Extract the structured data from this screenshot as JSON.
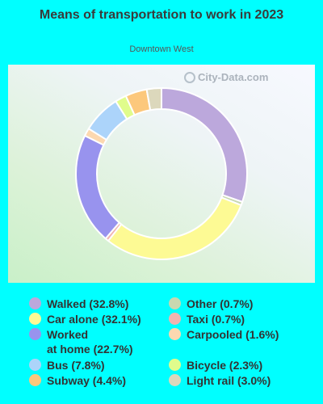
{
  "header": {
    "title": "Means of transportation to work in 2023",
    "subtitle": "Downtown West",
    "watermark": "City-Data.com"
  },
  "chart_data": {
    "type": "pie",
    "title": "Means of transportation to work in 2023",
    "subtitle": "Downtown West",
    "donut": true,
    "series": [
      {
        "name": "Walked",
        "value": 32.8,
        "color": "#bca8dc",
        "legend": "Walked (32.8%)"
      },
      {
        "name": "Other",
        "value": 0.7,
        "color": "#c8d8b0",
        "legend": "Other (0.7%)"
      },
      {
        "name": "Car alone",
        "value": 32.1,
        "color": "#fdfa94",
        "legend": "Car alone (32.1%)"
      },
      {
        "name": "Taxi",
        "value": 0.7,
        "color": "#f0b4b0",
        "legend": "Taxi (0.7%)"
      },
      {
        "name": "Worked at home",
        "value": 22.7,
        "color": "#9893ee",
        "legend": "Worked at home (22.7%)"
      },
      {
        "name": "Carpooled",
        "value": 1.6,
        "color": "#fcd8b0",
        "legend": "Carpooled (1.6%)"
      },
      {
        "name": "Bus",
        "value": 7.8,
        "color": "#acd4fa",
        "legend": "Bus (7.8%)"
      },
      {
        "name": "Bicycle",
        "value": 2.3,
        "color": "#e0fc8c",
        "legend": "Bicycle (2.3%)"
      },
      {
        "name": "Subway",
        "value": 4.4,
        "color": "#fcc87c",
        "legend": "Subway (4.4%)"
      },
      {
        "name": "Light rail",
        "value": 3.0,
        "color": "#dcd8bc",
        "legend": "Light rail (3.0%)"
      }
    ],
    "legend_layout": "two-columns-bottom"
  },
  "legend": {
    "col1": [
      {
        "label": "Walked (32.8%)",
        "color": "#bca8dc"
      },
      {
        "label": "Car alone (32.1%)",
        "color": "#fdfa94"
      },
      {
        "label_line1": "Worked",
        "label_line2": "at home (22.7%)",
        "color": "#9893ee"
      },
      {
        "label": "Bus (7.8%)",
        "color": "#acd4fa"
      },
      {
        "label": "Subway (4.4%)",
        "color": "#fcc87c"
      }
    ],
    "col2": [
      {
        "label": "Other (0.7%)",
        "color": "#c8d8b0"
      },
      {
        "label": "Taxi (0.7%)",
        "color": "#f0b4b0"
      },
      {
        "label": "Carpooled (1.6%)",
        "color": "#fcd8b0"
      },
      {
        "label": "Bicycle (2.3%)",
        "color": "#e0fc8c"
      },
      {
        "label": "Light rail (3.0%)",
        "color": "#dcd8bc"
      }
    ]
  }
}
